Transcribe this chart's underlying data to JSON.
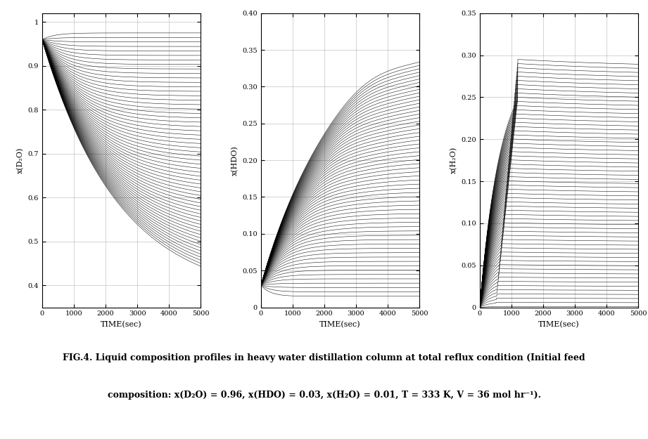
{
  "title_text": "FIG.4. Liquid composition profiles in heavy water distillation column at total reflux condition (Initial feed",
  "subtitle_text": "composition: x(D₂O) = 0.96, x(HDO) = 0.03, x(H₂O) = 0.01, T = 333 K, V = 36 mol hr⁻¹).",
  "ylabel1": "x(D₂O)",
  "ylabel2": "x(HDO)",
  "ylabel3": "x(H₂O)",
  "xlabel": "TIME(sec)",
  "xlim": [
    0,
    5000
  ],
  "ylim1": [
    0.35,
    1.02
  ],
  "ylim2": [
    0,
    0.4
  ],
  "ylim3": [
    0,
    0.35
  ],
  "yticks1": [
    0.4,
    0.5,
    0.6,
    0.7,
    0.8,
    0.9,
    1.0
  ],
  "yticks2": [
    0,
    0.05,
    0.1,
    0.15,
    0.2,
    0.25,
    0.3,
    0.35,
    0.4
  ],
  "yticks3": [
    0,
    0.05,
    0.1,
    0.15,
    0.2,
    0.25,
    0.3,
    0.35
  ],
  "xticks": [
    0,
    1000,
    2000,
    3000,
    4000,
    5000
  ],
  "n_lines": 60,
  "t_max": 5000,
  "line_color": "#000000",
  "line_width": 0.4,
  "bg_color": "#ffffff",
  "grid_color": "#aaaaaa",
  "font_size_label": 8,
  "font_size_tick": 7,
  "font_size_caption": 9
}
